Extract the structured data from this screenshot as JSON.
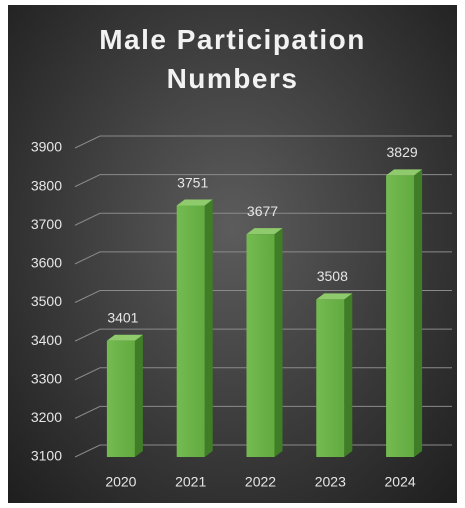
{
  "chart_data": {
    "type": "bar3d",
    "title": "Male Participation Numbers",
    "categories": [
      "2020",
      "2021",
      "2022",
      "2023",
      "2024"
    ],
    "values": [
      3401,
      3751,
      3677,
      3508,
      3829
    ],
    "color": "#6ab446",
    "ylim": [
      3100,
      3900
    ],
    "yticks": [
      3100,
      3200,
      3300,
      3400,
      3500,
      3600,
      3700,
      3800,
      3900
    ],
    "grid": true
  }
}
